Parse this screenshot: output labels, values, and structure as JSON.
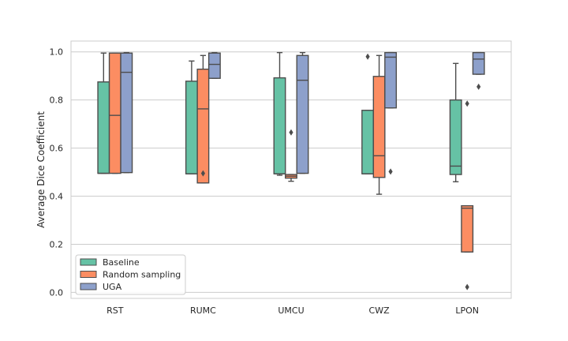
{
  "chart_data": {
    "type": "box",
    "title": "",
    "xlabel": "",
    "ylabel": "Average Dice Coefficient",
    "ylim": [
      -0.025,
      1.045
    ],
    "yticks": [
      0.0,
      0.2,
      0.4,
      0.6,
      0.8,
      1.0
    ],
    "ytick_labels": [
      "0.0",
      "0.2",
      "0.4",
      "0.6",
      "0.8",
      "1.0"
    ],
    "grid": "horizontal",
    "legend_position": "lower-left",
    "categories": [
      "RST",
      "RUMC",
      "UMCU",
      "CWZ",
      "LPON"
    ],
    "series": [
      {
        "name": "Baseline",
        "color": "#66c2a5",
        "boxes": [
          {
            "whislo": 0.495,
            "q1": 0.495,
            "med": 0.495,
            "q3": 0.875,
            "whishi": 0.995,
            "fliers": []
          },
          {
            "whislo": 0.493,
            "q1": 0.493,
            "med": 0.493,
            "q3": 0.878,
            "whishi": 0.962,
            "fliers": []
          },
          {
            "whislo": 0.487,
            "q1": 0.493,
            "med": 0.493,
            "q3": 0.892,
            "whishi": 0.997,
            "fliers": []
          },
          {
            "whislo": 0.493,
            "q1": 0.493,
            "med": 0.493,
            "q3": 0.757,
            "whishi": 0.757,
            "fliers": [
              0.98
            ]
          },
          {
            "whislo": 0.46,
            "q1": 0.49,
            "med": 0.525,
            "q3": 0.8,
            "whishi": 0.952,
            "fliers": []
          }
        ]
      },
      {
        "name": "Random sampling",
        "color": "#fc8d62",
        "boxes": [
          {
            "whislo": 0.495,
            "q1": 0.495,
            "med": 0.736,
            "q3": 0.995,
            "whishi": 0.995,
            "fliers": []
          },
          {
            "whislo": 0.455,
            "q1": 0.455,
            "med": 0.763,
            "q3": 0.928,
            "whishi": 0.985,
            "fliers": [
              0.495
            ]
          },
          {
            "whislo": 0.462,
            "q1": 0.475,
            "med": 0.483,
            "q3": 0.49,
            "whishi": 0.49,
            "fliers": [
              0.665
            ]
          },
          {
            "whislo": 0.408,
            "q1": 0.478,
            "med": 0.568,
            "q3": 0.898,
            "whishi": 0.985,
            "fliers": []
          },
          {
            "whislo": 0.168,
            "q1": 0.168,
            "med": 0.35,
            "q3": 0.36,
            "whishi": 0.36,
            "fliers": [
              0.785,
              0.022
            ]
          }
        ]
      },
      {
        "name": "UGA",
        "color": "#8da0cb",
        "boxes": [
          {
            "whislo": 0.498,
            "q1": 0.498,
            "med": 0.915,
            "q3": 0.995,
            "whishi": 0.997,
            "fliers": []
          },
          {
            "whislo": 0.89,
            "q1": 0.89,
            "med": 0.948,
            "q3": 0.995,
            "whishi": 0.997,
            "fliers": []
          },
          {
            "whislo": 0.495,
            "q1": 0.495,
            "med": 0.882,
            "q3": 0.985,
            "whishi": 0.997,
            "fliers": []
          },
          {
            "whislo": 0.767,
            "q1": 0.767,
            "med": 0.978,
            "q3": 0.997,
            "whishi": 0.997,
            "fliers": [
              0.502
            ]
          },
          {
            "whislo": 0.907,
            "q1": 0.907,
            "med": 0.97,
            "q3": 0.997,
            "whishi": 0.997,
            "fliers": [
              0.855
            ]
          }
        ]
      }
    ]
  }
}
